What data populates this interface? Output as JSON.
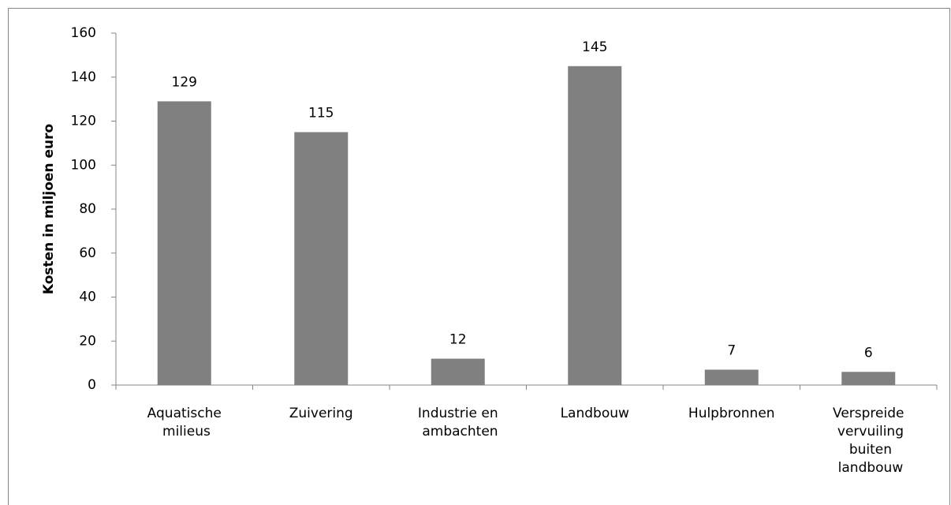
{
  "chart_data": {
    "type": "bar",
    "y_label": "Kosten in miljoen euro",
    "categories": [
      "Aquatische milieus",
      "Zuivering",
      "Industrie en ambachten",
      "Landbouw",
      "Hulpbronnen",
      "Verspreide vervuiling buiten landbouw"
    ],
    "values": [
      129,
      115,
      12,
      145,
      7,
      6
    ],
    "color": "#808080",
    "ylim": [
      0,
      160
    ],
    "yticks": [
      0,
      20,
      40,
      60,
      80,
      100,
      120,
      140,
      160
    ],
    "grid": false,
    "data_labels": true
  }
}
